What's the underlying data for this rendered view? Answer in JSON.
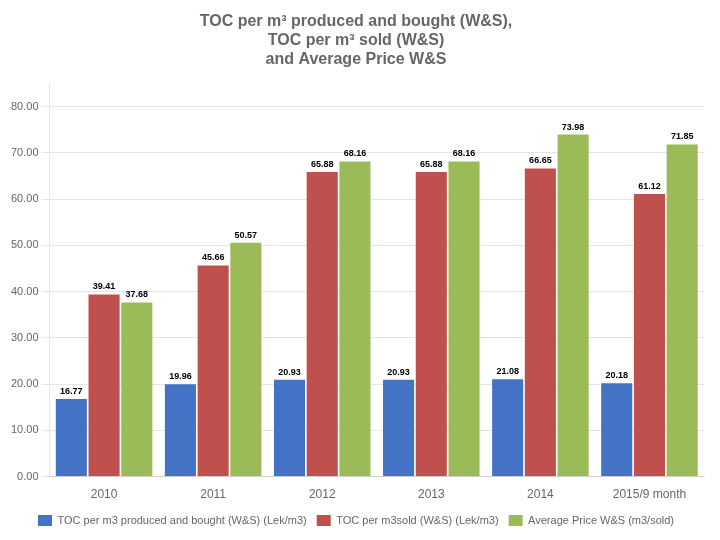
{
  "chart_data": {
    "type": "bar",
    "title": [
      "TOC per m³ produced and bought (W&S),",
      "TOC per m³ sold (W&S)",
      "and Average Price W&S"
    ],
    "categories": [
      "2010",
      "2011",
      "2012",
      "2013",
      "2014",
      "2015/9 month"
    ],
    "series": [
      {
        "name": "TOC per m3 produced and bought (W&S) (Lek/m3)",
        "color": "#4472C4",
        "values": [
          16.77,
          19.96,
          20.93,
          20.93,
          21.08,
          20.18
        ]
      },
      {
        "name": "TOC per m3sold (W&S) (Lek/m3)",
        "color": "#C0504D",
        "values": [
          39.41,
          45.66,
          65.88,
          65.88,
          66.65,
          61.12
        ]
      },
      {
        "name": "Average Price W&S (m3/sold)",
        "color": "#9BBB59",
        "values": [
          37.68,
          50.57,
          68.16,
          68.16,
          73.98,
          71.85
        ]
      }
    ],
    "ylim": [
      0,
      85
    ],
    "yticks": [
      {
        "value": 0,
        "label": "0.00"
      },
      {
        "value": 10,
        "label": "10.00"
      },
      {
        "value": 20,
        "label": "20.00"
      },
      {
        "value": 30,
        "label": "30.00"
      },
      {
        "value": 40,
        "label": "40.00"
      },
      {
        "value": 50,
        "label": "50.00"
      },
      {
        "value": 60,
        "label": "60.00"
      },
      {
        "value": 70,
        "label": "70.00"
      },
      {
        "value": 80,
        "label": "80.00"
      }
    ],
    "grid": true,
    "legend": "bottom",
    "data_labels": true
  }
}
